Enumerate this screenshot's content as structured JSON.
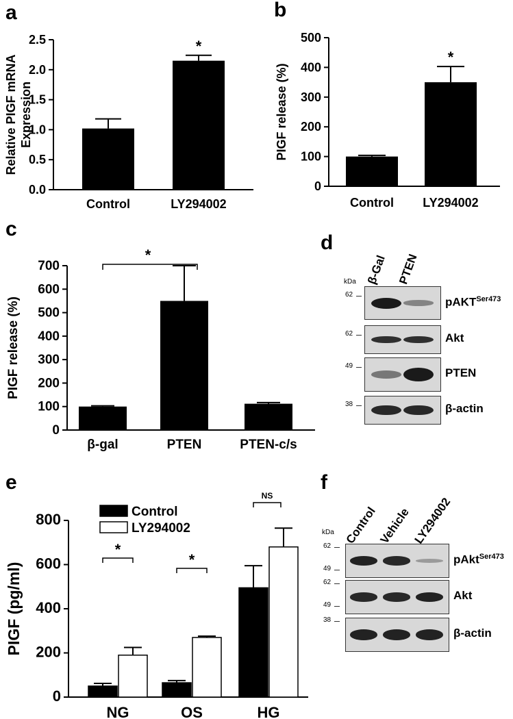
{
  "panels": {
    "a": "a",
    "b": "b",
    "c": "c",
    "d": "d",
    "e": "e",
    "f": "f"
  },
  "chart_data": [
    {
      "panel": "a",
      "type": "bar",
      "categories": [
        "Control",
        "LY294002"
      ],
      "values": [
        1.02,
        2.15
      ],
      "errors": [
        0.16,
        0.09
      ],
      "ylabel": "Relative PIGF mRNA Expression",
      "ylabel_line1": "Relative PIGF mRNA",
      "ylabel_line2": "Expression",
      "ylim": [
        0,
        2.5
      ],
      "yticks": [
        "0.0",
        "0.5",
        "1.0",
        "1.5",
        "2.0",
        "2.5"
      ],
      "annotations": [
        "*"
      ]
    },
    {
      "panel": "b",
      "type": "bar",
      "categories": [
        "Control",
        "LY294002"
      ],
      "values": [
        100,
        350
      ],
      "errors": [
        4,
        53
      ],
      "ylabel": "PIGF release (%)",
      "ylim": [
        0,
        500
      ],
      "yticks": [
        "0",
        "100",
        "200",
        "300",
        "400",
        "500"
      ],
      "annotations": [
        "*"
      ]
    },
    {
      "panel": "c",
      "type": "bar",
      "categories": [
        "β-gal",
        "PTEN",
        "PTEN-c/s"
      ],
      "values": [
        100,
        550,
        112
      ],
      "errors": [
        3,
        150,
        5
      ],
      "ylabel": "PIGF release (%)",
      "ylim": [
        0,
        700
      ],
      "yticks": [
        "0",
        "100",
        "200",
        "300",
        "400",
        "500",
        "600",
        "700"
      ],
      "annotations": [
        "*"
      ]
    },
    {
      "panel": "e",
      "type": "bar",
      "categories": [
        "NG",
        "OS",
        "HG"
      ],
      "series": [
        {
          "name": "Control",
          "values": [
            50,
            65,
            495
          ],
          "errors": [
            12,
            10,
            100
          ],
          "color": "#000000"
        },
        {
          "name": "LY294002",
          "values": [
            190,
            270,
            680
          ],
          "errors": [
            35,
            6,
            85
          ],
          "color": "#ffffff"
        }
      ],
      "ylabel": "PIGF (pg/ml)",
      "ylim": [
        0,
        800
      ],
      "yticks": [
        "0",
        "200",
        "400",
        "600",
        "800"
      ],
      "legend": "top-left",
      "annotations": [
        "*",
        "*",
        "NS"
      ]
    }
  ],
  "blot_d": {
    "kda": "kDa",
    "lanes": [
      "β-Gal",
      "PTEN"
    ],
    "rows": [
      {
        "label": "pAKT",
        "sup": "Ser473",
        "mw": "62",
        "band": [
          1.0,
          0.25
        ]
      },
      {
        "label": "Akt",
        "sup": "",
        "mw": "62",
        "band": [
          0.85,
          0.85
        ]
      },
      {
        "label": "PTEN",
        "sup": "",
        "mw": "49",
        "band": [
          0.35,
          1.0
        ]
      },
      {
        "label": "β-actin",
        "sup": "",
        "mw": "38",
        "band": [
          0.9,
          0.9
        ]
      }
    ]
  },
  "blot_f": {
    "kda": "kDa",
    "lanes": [
      "Control",
      "Vehicle",
      "LY294002"
    ],
    "rows": [
      {
        "label": "pAkt",
        "sup": "Ser473",
        "mw_top": "62",
        "mw_bottom": "49",
        "band": [
          0.95,
          0.9,
          0.1
        ]
      },
      {
        "label": "Akt",
        "sup": "",
        "mw_top": "62",
        "mw_bottom": "49",
        "band": [
          0.9,
          0.9,
          0.95
        ]
      },
      {
        "label": "β-actin",
        "sup": "",
        "mw_top": "38",
        "mw_bottom": "",
        "band": [
          0.95,
          0.95,
          0.95
        ]
      }
    ]
  }
}
